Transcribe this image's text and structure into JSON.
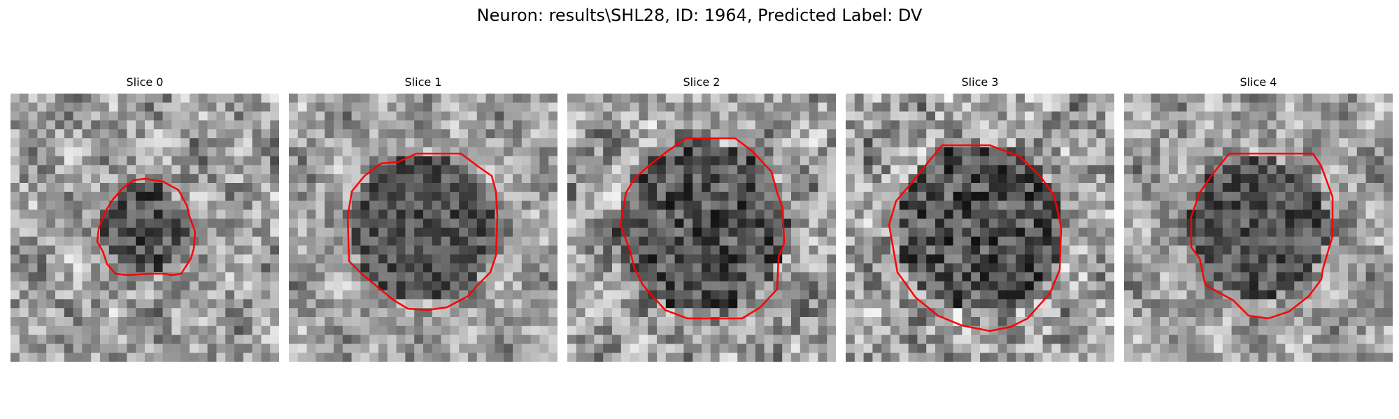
{
  "figure": {
    "title": "Neuron: results\\SHL28, ID: 1964, Predicted Label: DV",
    "contour_color": "#ff0000",
    "colormap": "grayscale"
  },
  "slices": [
    {
      "title": "Slice 0",
      "dark_radius": 0.16,
      "contrast": 1.0
    },
    {
      "title": "Slice 1",
      "dark_radius": 0.27,
      "contrast": 0.85
    },
    {
      "title": "Slice 2",
      "dark_radius": 0.32,
      "contrast": 1.1
    },
    {
      "title": "Slice 3",
      "dark_radius": 0.31,
      "contrast": 1.15
    },
    {
      "title": "Slice 4",
      "dark_radius": 0.26,
      "contrast": 0.9
    }
  ]
}
